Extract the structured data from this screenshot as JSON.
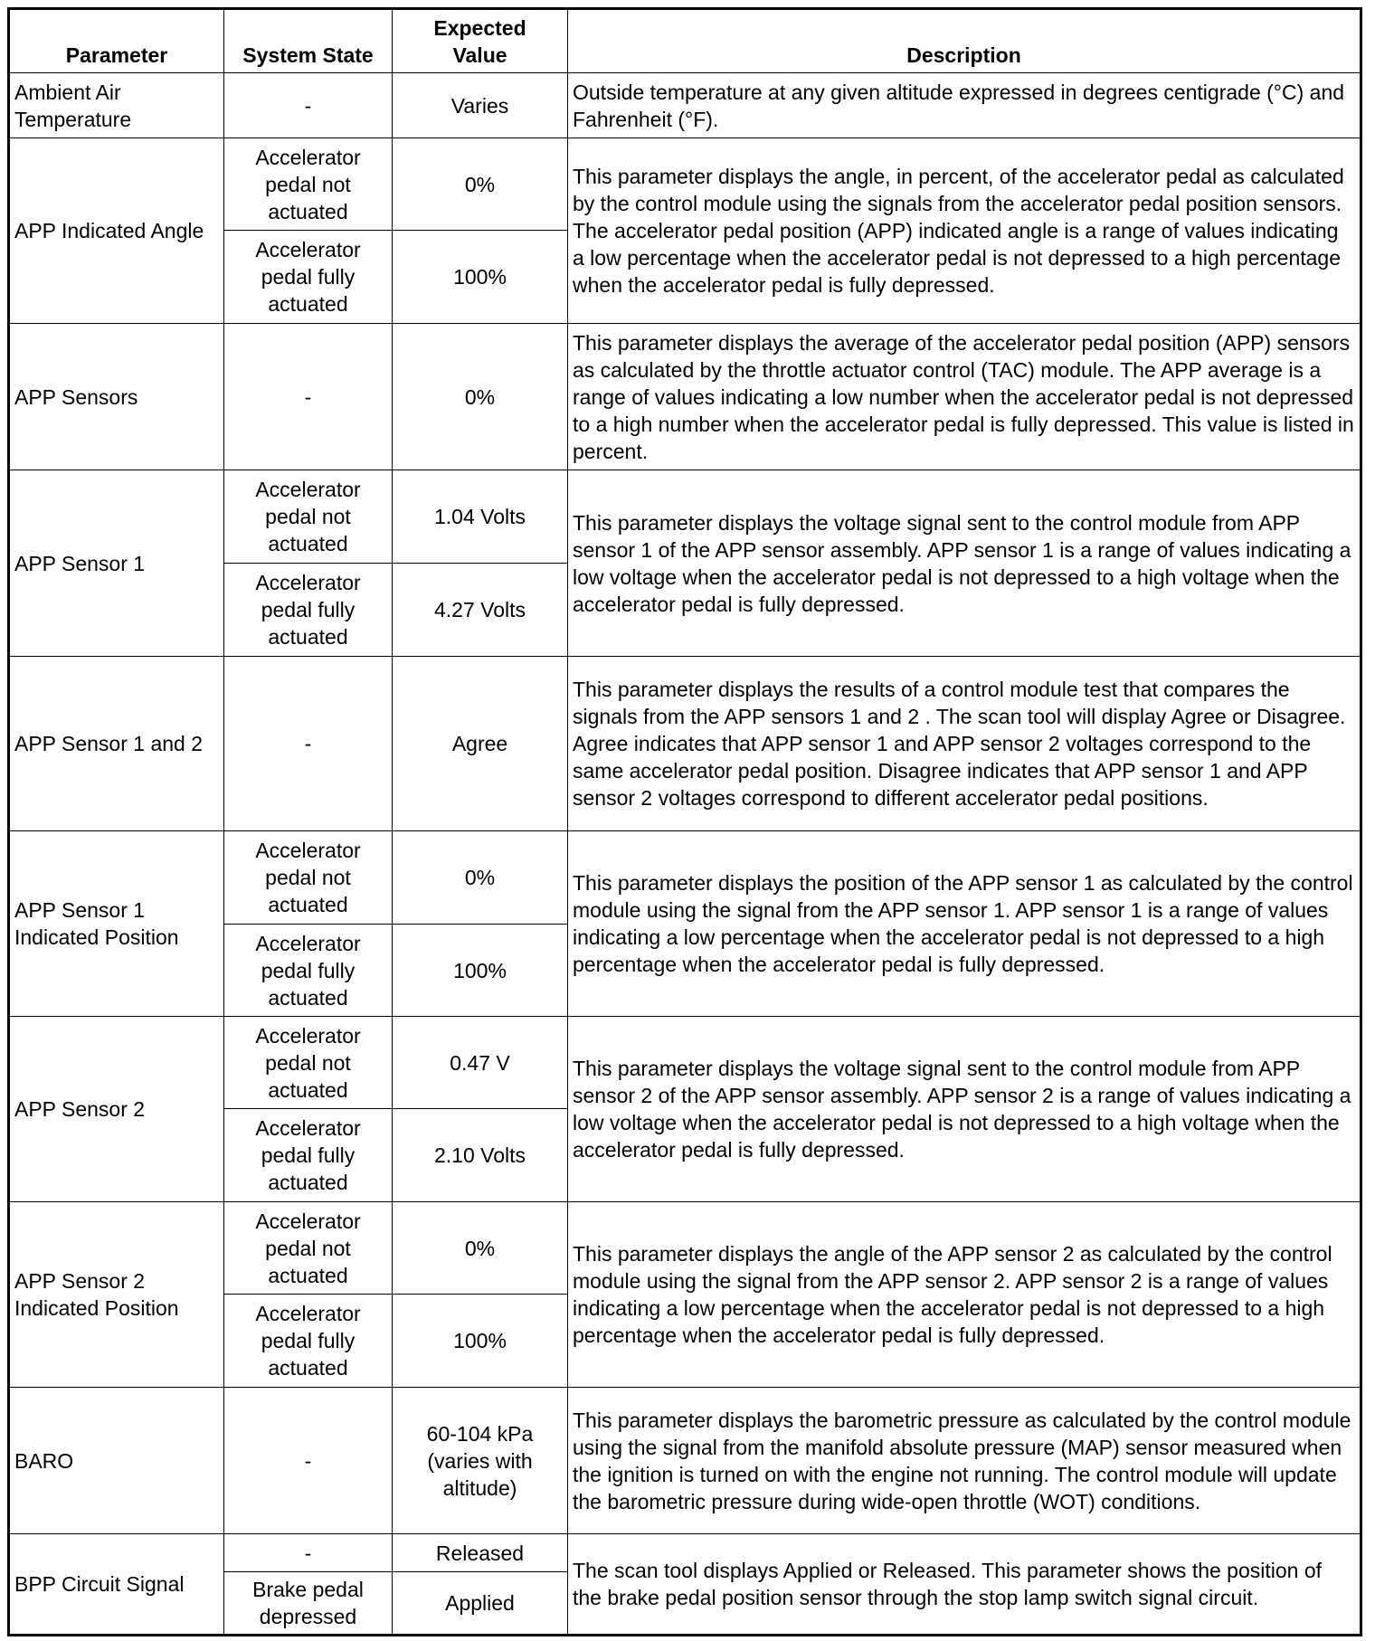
{
  "headers": {
    "parameter": "Parameter",
    "state": "System State",
    "value": "Expected Value",
    "description": "Description"
  },
  "rows": [
    {
      "parameter": "Ambient Air Temperature",
      "states": [
        {
          "state": "-",
          "value": "Varies"
        }
      ],
      "description": "Outside temperature at any given altitude expressed in degrees centigrade (°C) and Fahrenheit (°F).",
      "h": [
        72
      ]
    },
    {
      "parameter": "APP Indicated Angle",
      "states": [
        {
          "state": "Accelerator pedal not actuated",
          "value": "0%"
        },
        {
          "state": "Accelerator pedal fully actuated",
          "value": "100%"
        }
      ],
      "description": "This parameter displays the angle, in percent, of the accelerator pedal as calculated by the control module using the signals from the accelerator pedal position sensors. The accelerator pedal position (APP) indicated angle is a range of values indicating a low percentage when the accelerator pedal is not depressed to a high percentage when the accelerator pedal is fully depressed.",
      "h": [
        102,
        103
      ]
    },
    {
      "parameter": "APP Sensors",
      "states": [
        {
          "state": "-",
          "value": "0%"
        }
      ],
      "description": "This parameter displays the average of the accelerator pedal position (APP) sensors as calculated by the throttle actuator control (TAC) module. The APP average is a range of values indicating a low number when the accelerator pedal is not depressed to a high number when the accelerator pedal is fully depressed. This value is listed in percent.",
      "h": [
        162
      ]
    },
    {
      "parameter": "APP Sensor 1",
      "states": [
        {
          "state": "Accelerator pedal not actuated",
          "value": "1.04 Volts"
        },
        {
          "state": "Accelerator pedal fully actuated",
          "value": "4.27 Volts"
        }
      ],
      "description": "This parameter displays the voltage signal sent to the control module from APP sensor 1 of the APP sensor assembly. APP sensor 1 is a range of values indicating a low voltage when the accelerator pedal is not depressed to a high voltage when the accelerator pedal is fully depressed.",
      "h": [
        103,
        103
      ]
    },
    {
      "parameter": "APP Sensor 1 and 2",
      "states": [
        {
          "state": "-",
          "value": "Agree"
        }
      ],
      "description": "This parameter displays the results of a control module test that compares the signals from the APP sensors 1 and 2 . The scan tool will display Agree or Disagree. Agree indicates that APP sensor 1 and APP sensor 2 voltages correspond to the same accelerator pedal position. Disagree indicates that APP sensor 1 and APP sensor 2 voltages correspond to different accelerator pedal positions.",
      "h": [
        193
      ]
    },
    {
      "parameter": "APP Sensor 1 Indicated Position",
      "states": [
        {
          "state": "Accelerator pedal not actuated",
          "value": "0%"
        },
        {
          "state": "Accelerator pedal fully actuated",
          "value": "100%"
        }
      ],
      "description": "This parameter displays the position of the APP sensor 1 as calculated by the control module using the signal from the APP sensor 1. APP sensor 1 is a range of values indicating a low percentage when the accelerator pedal is not depressed to a high percentage when the accelerator pedal is fully depressed.",
      "h": [
        103,
        102
      ]
    },
    {
      "parameter": "APP Sensor 2",
      "states": [
        {
          "state": "Accelerator pedal not actuated",
          "value": "0.47 V"
        },
        {
          "state": "Accelerator pedal fully actuated",
          "value": "2.10 Volts"
        }
      ],
      "description": "This parameter displays the voltage signal sent to the control module from APP sensor 2 of the APP sensor assembly. APP sensor 2 is a range of values indicating a low voltage when the accelerator pedal is not depressed to a high voltage when the accelerator pedal is fully depressed.",
      "h": [
        102,
        103
      ]
    },
    {
      "parameter": "APP Sensor 2 Indicated Position",
      "states": [
        {
          "state": "Accelerator pedal not actuated",
          "value": "0%"
        },
        {
          "state": "Accelerator pedal fully actuated",
          "value": "100%"
        }
      ],
      "description": "This parameter displays the angle of the APP sensor 2 as calculated by the control module using the signal from the APP sensor 2. APP sensor 2 is a range of values indicating a low percentage when the accelerator pedal is not depressed to a high percentage when the accelerator pedal is fully depressed.",
      "h": [
        102,
        103
      ]
    },
    {
      "parameter": "BARO",
      "states": [
        {
          "state": "-",
          "value": "60-104 kPa (varies with altitude)"
        }
      ],
      "description": "This parameter displays the barometric pressure as calculated by the control module using the signal from the manifold absolute pressure (MAP) sensor measured when the ignition is turned on with the engine not running. The control module will update the barometric pressure during wide-open throttle (WOT) conditions.",
      "h": [
        162
      ]
    },
    {
      "parameter": "BPP Circuit Signal",
      "states": [
        {
          "state": "-",
          "value": "Released"
        },
        {
          "state": "Brake pedal depressed",
          "value": "Applied"
        }
      ],
      "description": "The scan tool displays Applied or Released. This parameter shows the position of the brake pedal position sensor through the stop lamp switch signal circuit.",
      "h": [
        42,
        70
      ]
    }
  ]
}
